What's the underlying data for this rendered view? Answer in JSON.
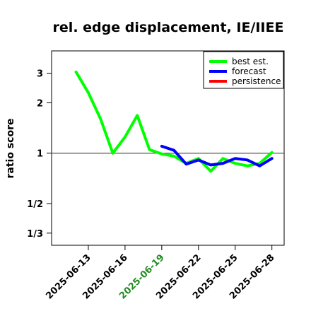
{
  "chart_data": {
    "type": "line",
    "title": "rel. edge displacement, IE/IIEE",
    "ylabel": "ratio score",
    "xlabel": "",
    "y_scale": "log (ratio)",
    "ylim": [
      0.282,
      4.08
    ],
    "yticks": [
      {
        "value": 0.3333,
        "label": "1/3"
      },
      {
        "value": 0.5,
        "label": "1/2"
      },
      {
        "value": 1,
        "label": "1"
      },
      {
        "value": 2,
        "label": "2"
      },
      {
        "value": 3,
        "label": "3"
      }
    ],
    "reference_line": 1,
    "xlim": [
      "2025-06-10",
      "2025-06-29"
    ],
    "xticks": [
      {
        "date": "2025-06-13",
        "label": "2025-06-13",
        "color": "#000000"
      },
      {
        "date": "2025-06-16",
        "label": "2025-06-16",
        "color": "#000000"
      },
      {
        "date": "2025-06-19",
        "label": "2025-06-19",
        "color": "#228B22"
      },
      {
        "date": "2025-06-22",
        "label": "2025-06-22",
        "color": "#000000"
      },
      {
        "date": "2025-06-25",
        "label": "2025-06-25",
        "color": "#000000"
      },
      {
        "date": "2025-06-28",
        "label": "2025-06-28",
        "color": "#000000"
      }
    ],
    "legend_position": "top-right",
    "series": [
      {
        "name": "best est.",
        "color": "#00ff00",
        "points": [
          {
            "x": "2025-06-12",
            "y": 3.05
          },
          {
            "x": "2025-06-13",
            "y": 2.3
          },
          {
            "x": "2025-06-14",
            "y": 1.6
          },
          {
            "x": "2025-06-15",
            "y": 1.0
          },
          {
            "x": "2025-06-16",
            "y": 1.25
          },
          {
            "x": "2025-06-17",
            "y": 1.68
          },
          {
            "x": "2025-06-18",
            "y": 1.05
          },
          {
            "x": "2025-06-19",
            "y": 0.99
          },
          {
            "x": "2025-06-20",
            "y": 0.96
          },
          {
            "x": "2025-06-21",
            "y": 0.87
          },
          {
            "x": "2025-06-22",
            "y": 0.93
          },
          {
            "x": "2025-06-23",
            "y": 0.78
          },
          {
            "x": "2025-06-24",
            "y": 0.93
          },
          {
            "x": "2025-06-25",
            "y": 0.87
          },
          {
            "x": "2025-06-26",
            "y": 0.84
          },
          {
            "x": "2025-06-27",
            "y": 0.87
          },
          {
            "x": "2025-06-28",
            "y": 1.01
          }
        ]
      },
      {
        "name": "forecast",
        "color": "#0000ff",
        "points": [
          {
            "x": "2025-06-19",
            "y": 1.1
          },
          {
            "x": "2025-06-20",
            "y": 1.04
          },
          {
            "x": "2025-06-21",
            "y": 0.86
          },
          {
            "x": "2025-06-22",
            "y": 0.91
          },
          {
            "x": "2025-06-23",
            "y": 0.85
          },
          {
            "x": "2025-06-24",
            "y": 0.87
          },
          {
            "x": "2025-06-25",
            "y": 0.93
          },
          {
            "x": "2025-06-26",
            "y": 0.91
          },
          {
            "x": "2025-06-27",
            "y": 0.84
          },
          {
            "x": "2025-06-28",
            "y": 0.93
          }
        ]
      },
      {
        "name": "persistence",
        "color": "#ff0000",
        "points": []
      }
    ]
  }
}
